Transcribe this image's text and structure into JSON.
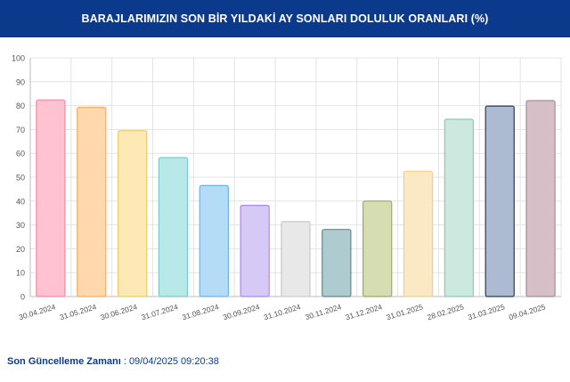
{
  "header": {
    "title": "BARAJLARIMIZIN SON BİR YILDAKİ AY SONLARI DOLULUK ORANLARI (%)"
  },
  "footer": {
    "label": "Son Güncelleme Zamanı",
    "separator": " : ",
    "value": "09/04/2025 09:20:38"
  },
  "colors": {
    "header_bg": "#0b3a8c",
    "footer_text": "#0b3a8c"
  },
  "chart_data": {
    "type": "bar",
    "title": "BARAJLARIMIZIN SON BİR YILDAKİ AY SONLARI DOLULUK ORANLARI (%)",
    "xlabel": "",
    "ylabel": "",
    "ylim": [
      0,
      100
    ],
    "yticks": [
      "0",
      "10",
      "20",
      "30",
      "40",
      "50",
      "60",
      "70",
      "80",
      "90",
      "100"
    ],
    "grid": true,
    "categories": [
      "30.04.2024",
      "31.05.2024",
      "30.06.2024",
      "31.07.2024",
      "31.08.2024",
      "30.09.2024",
      "31.10.2024",
      "30.11.2024",
      "31.12.2024",
      "31.01.2025",
      "28.02.2025",
      "31.03.2025",
      "09.04.2025"
    ],
    "values": [
      82.4,
      79.3,
      69.5,
      58.2,
      46.5,
      38.2,
      31.4,
      28.1,
      40.0,
      52.5,
      74.3,
      79.8,
      82.1
    ],
    "bar_fills": [
      "#ffc2d1",
      "#ffd8ad",
      "#fde9b5",
      "#b8e8e8",
      "#b5dcf7",
      "#d7c9f6",
      "#e8e8e8",
      "#aecbd0",
      "#d6ddb0",
      "#fbe9c4",
      "#cce9df",
      "#acbbd1",
      "#d7bfc8"
    ],
    "bar_strokes": [
      "#f08aa6",
      "#f2ad66",
      "#efcb6c",
      "#74cccc",
      "#6cb4e8",
      "#a98ae8",
      "#c9c9c9",
      "#5e8a93",
      "#9ea86a",
      "#efcf8c",
      "#8fc9b5",
      "#2e3b55",
      "#a98a97"
    ]
  }
}
